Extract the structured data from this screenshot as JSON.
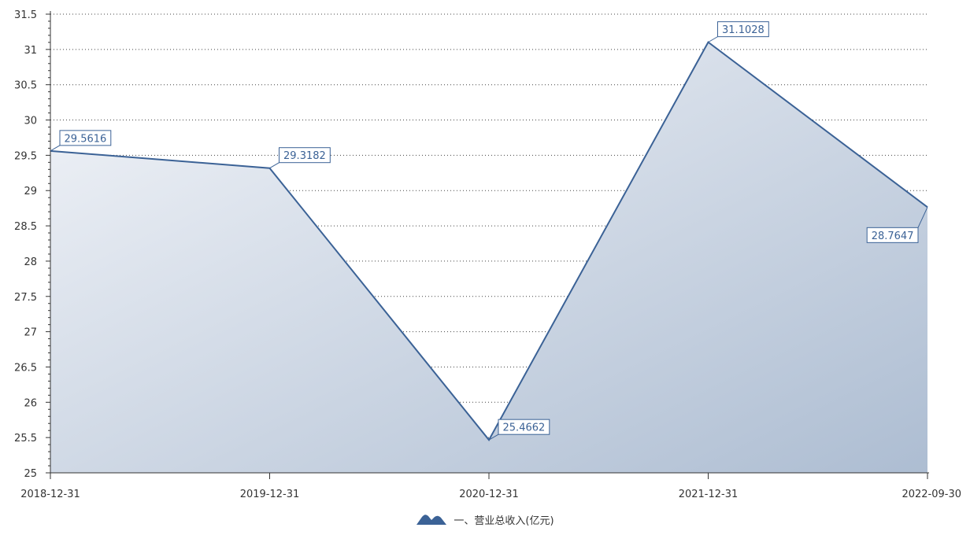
{
  "chart_data": {
    "type": "area",
    "categories": [
      "2018-12-31",
      "2019-12-31",
      "2020-12-31",
      "2021-12-31",
      "2022-09-30"
    ],
    "series": [
      {
        "name": "一、营业总收入(亿元)",
        "values": [
          29.5616,
          29.3182,
          25.4662,
          31.1028,
          28.7647
        ],
        "labels": [
          "29.5616",
          "29.3182",
          "25.4662",
          "31.1028",
          "28.7647"
        ]
      }
    ],
    "title": "",
    "xlabel": "",
    "ylabel": "",
    "ylim": [
      25,
      31.5
    ],
    "yticks": [
      "25",
      "25.5",
      "26",
      "26.5",
      "27",
      "27.5",
      "28",
      "28.5",
      "29",
      "29.5",
      "30",
      "30.5",
      "31",
      "31.5"
    ],
    "grid": true,
    "legend_position": "bottom",
    "colors": {
      "line": "#3b6296",
      "fill_light": "#f3f5f9",
      "fill_dark": "#adbdd2",
      "label_border": "#3b6296",
      "label_text": "#3b6296",
      "axis": "#333333",
      "grid": "#444444"
    }
  }
}
